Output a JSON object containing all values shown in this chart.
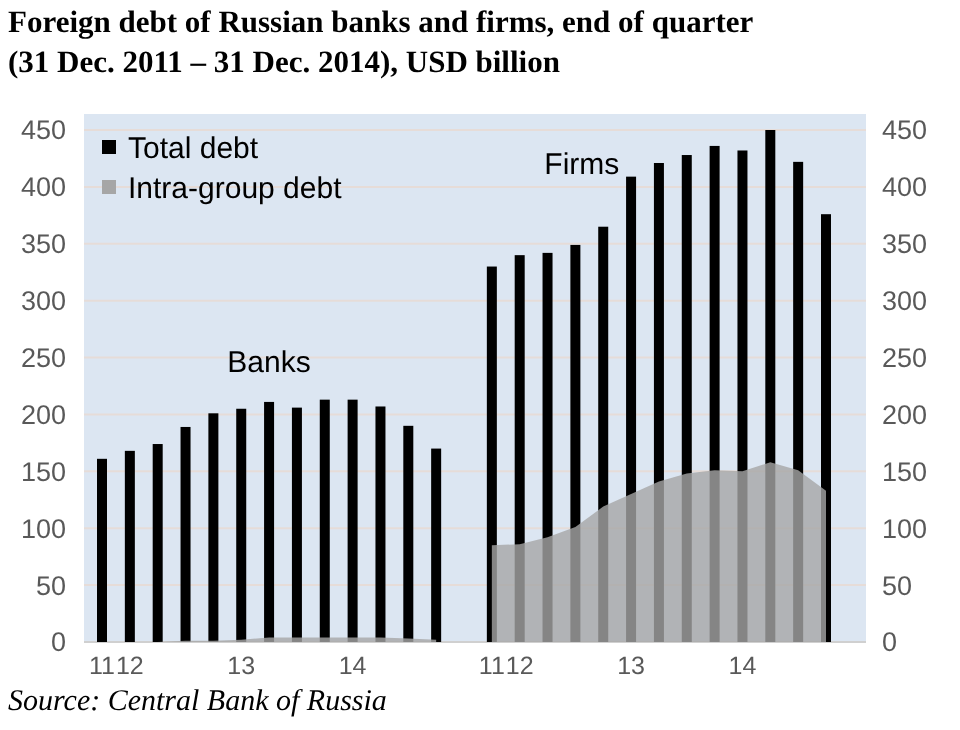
{
  "chart_data": {
    "type": "bar",
    "title": "Foreign debt of Russian banks and firms, end of quarter\n(31 Dec. 2011 – 31 Dec. 2014), USD billion",
    "categories": [
      "11",
      "12",
      null,
      null,
      null,
      "13",
      null,
      null,
      null,
      "14",
      null,
      null,
      null,
      null,
      "11",
      "12",
      null,
      null,
      null,
      "13",
      null,
      null,
      null,
      "14",
      null,
      null,
      null
    ],
    "series": [
      {
        "name": "Total debt",
        "color": "#000000",
        "values": [
          161,
          168,
          174,
          189,
          201,
          205,
          211,
          206,
          213,
          213,
          207,
          190,
          170,
          null,
          330,
          340,
          342,
          349,
          365,
          409,
          421,
          428,
          436,
          432,
          450,
          422,
          376
        ]
      },
      {
        "name": "Intra-group debt",
        "type": "area",
        "color": "#a6a6a6",
        "values": [
          0,
          0,
          0,
          1,
          1,
          2,
          4,
          4,
          4,
          4,
          4,
          3,
          2,
          null,
          85,
          86,
          92,
          101,
          119,
          130,
          141,
          148,
          151,
          150,
          158,
          151,
          133
        ]
      }
    ],
    "ylim": [
      0,
      450
    ],
    "yticks": [
      0,
      50,
      100,
      150,
      200,
      250,
      300,
      350,
      400,
      450
    ],
    "y2lim": [
      0,
      450
    ],
    "y2ticks": [
      0,
      50,
      100,
      150,
      200,
      250,
      300,
      350,
      400,
      450
    ],
    "grid": "y",
    "legend": "top left",
    "annotations": [
      "Banks",
      "Firms",
      "Source: Central Bank of Russia"
    ]
  }
}
